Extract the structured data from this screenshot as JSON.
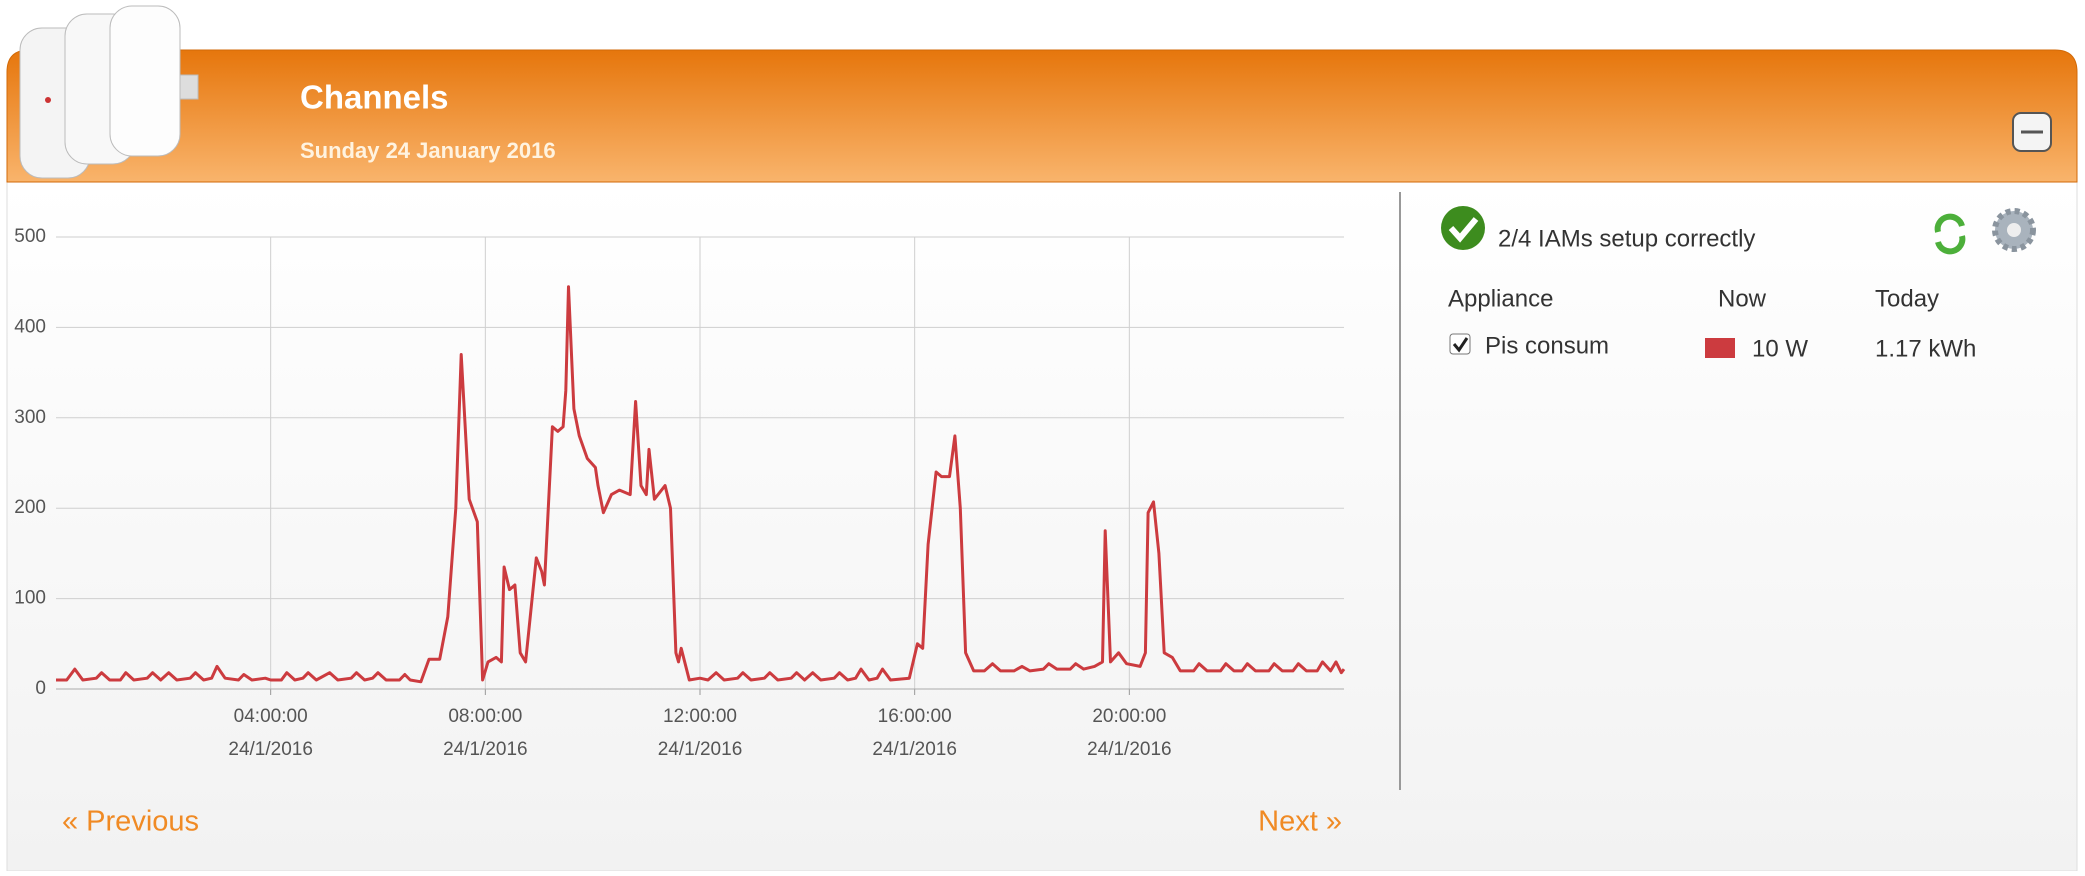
{
  "header": {
    "title": "Channels",
    "date": "Sunday 24 January 2016"
  },
  "chart_data": {
    "type": "line",
    "color": "#cc3b3f",
    "x": [
      0,
      0.2,
      0.35,
      0.5,
      0.75,
      0.85,
      1,
      1.2,
      1.3,
      1.45,
      1.7,
      1.8,
      1.95,
      2.1,
      2.25,
      2.5,
      2.6,
      2.75,
      2.9,
      3,
      3.15,
      3.4,
      3.5,
      3.65,
      3.9,
      4,
      4.2,
      4.3,
      4.45,
      4.6,
      4.7,
      4.85,
      5.1,
      5.25,
      5.5,
      5.6,
      5.75,
      5.9,
      6,
      6.15,
      6.4,
      6.5,
      6.6,
      6.8,
      6.95,
      7.15,
      7.3,
      7.45,
      7.55,
      7.7,
      7.85,
      7.95,
      8.05,
      8.2,
      8.3,
      8.35,
      8.45,
      8.55,
      8.65,
      8.75,
      8.95,
      9.05,
      9.1,
      9.25,
      9.35,
      9.45,
      9.5,
      9.55,
      9.65,
      9.75,
      9.9,
      10.05,
      10.1,
      10.2,
      10.35,
      10.5,
      10.7,
      10.8,
      10.9,
      11,
      11.05,
      11.15,
      11.35,
      11.45,
      11.55,
      11.6,
      11.65,
      11.8,
      12,
      12.15,
      12.3,
      12.45,
      12.7,
      12.8,
      12.95,
      13.2,
      13.3,
      13.45,
      13.7,
      13.8,
      13.95,
      14.1,
      14.25,
      14.5,
      14.6,
      14.75,
      14.9,
      15,
      15.15,
      15.3,
      15.4,
      15.55,
      15.9,
      16.05,
      16.15,
      16.25,
      16.4,
      16.5,
      16.65,
      16.75,
      16.85,
      16.95,
      17.1,
      17.3,
      17.45,
      17.6,
      17.85,
      18,
      18.15,
      18.4,
      18.5,
      18.65,
      18.9,
      19,
      19.15,
      19.35,
      19.5,
      19.55,
      19.65,
      19.8,
      19.95,
      20.2,
      20.3,
      20.35,
      20.45,
      20.55,
      20.65,
      20.8,
      20.95,
      21.2,
      21.3,
      21.45,
      21.7,
      21.8,
      21.95,
      22.1,
      22.2,
      22.35,
      22.6,
      22.7,
      22.85,
      23.05,
      23.15,
      23.3,
      23.5,
      23.6,
      23.75,
      23.85,
      23.95,
      24
    ],
    "values": [
      10,
      10,
      22,
      10,
      12,
      18,
      10,
      10,
      18,
      10,
      12,
      18,
      10,
      18,
      10,
      12,
      18,
      10,
      12,
      25,
      12,
      10,
      16,
      10,
      12,
      10,
      10,
      18,
      10,
      12,
      18,
      10,
      18,
      10,
      12,
      18,
      10,
      12,
      18,
      10,
      10,
      16,
      10,
      8,
      33,
      33,
      80,
      200,
      370,
      210,
      185,
      10,
      30,
      35,
      30,
      135,
      110,
      115,
      40,
      30,
      145,
      130,
      115,
      290,
      285,
      290,
      330,
      445,
      310,
      280,
      255,
      245,
      225,
      195,
      215,
      220,
      215,
      318,
      225,
      215,
      265,
      210,
      225,
      200,
      40,
      30,
      45,
      10,
      12,
      10,
      18,
      10,
      12,
      18,
      10,
      12,
      18,
      10,
      12,
      18,
      10,
      18,
      10,
      12,
      18,
      10,
      12,
      22,
      10,
      12,
      22,
      10,
      12,
      50,
      45,
      160,
      240,
      235,
      235,
      280,
      200,
      40,
      20,
      20,
      28,
      20,
      20,
      25,
      20,
      22,
      28,
      22,
      22,
      28,
      22,
      25,
      30,
      175,
      30,
      40,
      28,
      25,
      40,
      195,
      207,
      150,
      40,
      35,
      20,
      20,
      28,
      20,
      20,
      28,
      20,
      20,
      28,
      20,
      20,
      28,
      20,
      20,
      28,
      20,
      20,
      30,
      20,
      30,
      18,
      22
    ],
    "xlim": [
      0,
      24
    ],
    "xticks": [
      {
        "value": 4,
        "label": [
          "04:00:00",
          "24/1/2016"
        ]
      },
      {
        "value": 8,
        "label": [
          "08:00:00",
          "24/1/2016"
        ]
      },
      {
        "value": 12,
        "label": [
          "12:00:00",
          "24/1/2016"
        ]
      },
      {
        "value": 16,
        "label": [
          "16:00:00",
          "24/1/2016"
        ]
      },
      {
        "value": 20,
        "label": [
          "20:00:00",
          "24/1/2016"
        ]
      }
    ],
    "ylim": [
      0,
      500
    ],
    "yticks": [
      0,
      100,
      200,
      300,
      400,
      500
    ],
    "grid": true
  },
  "sidebar": {
    "status": "2/4 IAMs setup correctly",
    "columns": [
      "Appliance",
      "Now",
      "Today"
    ],
    "rows": [
      {
        "name": "Pis consum",
        "now": "10 W",
        "today": "1.17 kWh"
      }
    ]
  },
  "nav": {
    "previous": "« Previous",
    "next": "Next »"
  }
}
